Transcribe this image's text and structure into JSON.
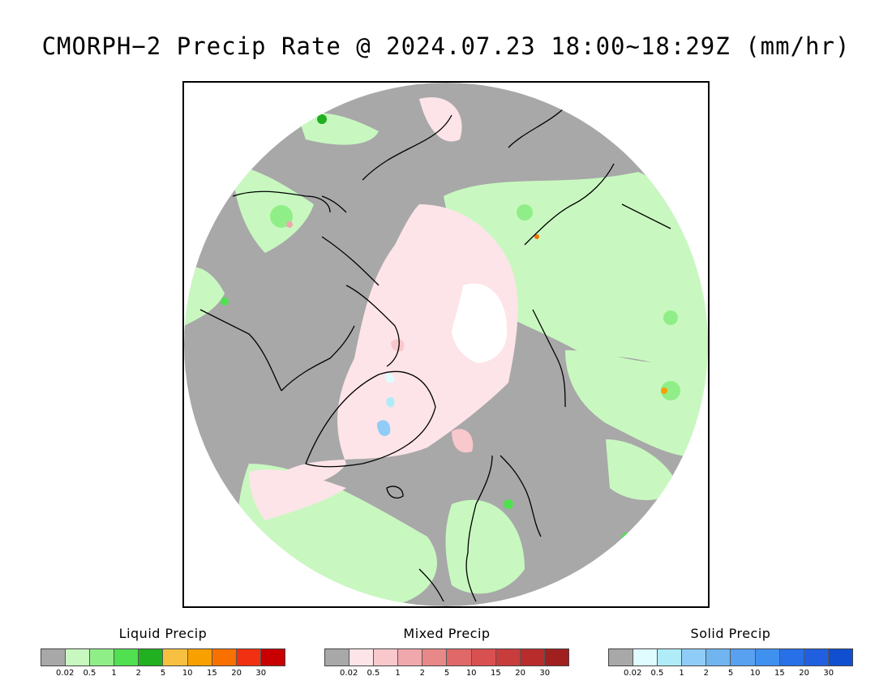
{
  "title": "CMORPH−2 Precip Rate @ 2024.07.23 18:00~18:29Z (mm/hr)",
  "colors": {
    "no_precip": "#a8a8a8",
    "map_bg": "#ffffff",
    "coastline": "#000000"
  },
  "legends": [
    {
      "title": "Liquid Precip",
      "colors": [
        "#a8a8a8",
        "#c8f8c0",
        "#90ee88",
        "#50e050",
        "#20b020",
        "#f8c040",
        "#f8a000",
        "#f87000",
        "#f03010",
        "#c80000"
      ],
      "ticks": [
        "0.02",
        "0.5",
        "1",
        "2",
        "5",
        "10",
        "15",
        "20",
        "30"
      ]
    },
    {
      "title": "Mixed Precip",
      "colors": [
        "#a8a8a8",
        "#fde4e8",
        "#f8c8cc",
        "#f0a8ac",
        "#e88888",
        "#e06868",
        "#d85050",
        "#c83c3c",
        "#b82c2c",
        "#a02020"
      ],
      "ticks": [
        "0.02",
        "0.5",
        "1",
        "2",
        "5",
        "10",
        "15",
        "20",
        "30"
      ]
    },
    {
      "title": "Solid Precip",
      "colors": [
        "#a8a8a8",
        "#e0fcff",
        "#b0ecf8",
        "#90ccf8",
        "#70b4f0",
        "#58a0f0",
        "#4090f0",
        "#2870e8",
        "#2060e0",
        "#1050d0"
      ],
      "ticks": [
        "0.02",
        "0.5",
        "1",
        "2",
        "5",
        "10",
        "15",
        "20",
        "30"
      ]
    }
  ]
}
